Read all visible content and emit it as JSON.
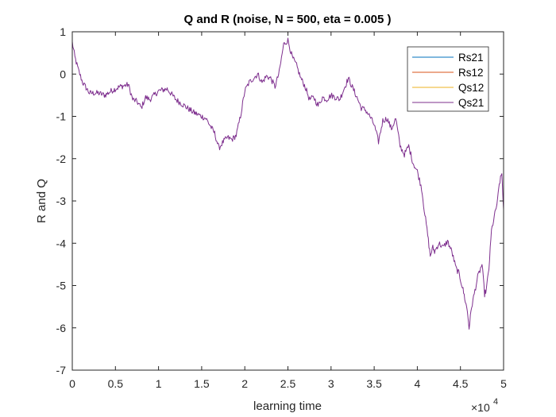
{
  "chart_data": {
    "type": "line",
    "title": "Q and R (noise, N = 500, eta = 0.005 )",
    "xlabel": "learning time",
    "ylabel": "R and Q",
    "x_exponent_label": "×10",
    "x_exponent_power": "4",
    "xlim": [
      0,
      50000
    ],
    "ylim": [
      -7,
      1
    ],
    "xticks": [
      0,
      5000,
      10000,
      15000,
      20000,
      25000,
      30000,
      35000,
      40000,
      45000,
      50000
    ],
    "xtick_labels": [
      "0",
      "0.5",
      "1",
      "1.5",
      "2",
      "2.5",
      "3",
      "3.5",
      "4",
      "4.5",
      "5"
    ],
    "yticks": [
      1,
      0,
      -1,
      -2,
      -3,
      -4,
      -5,
      -6,
      -7
    ],
    "ytick_labels": [
      "1",
      "0",
      "-1",
      "-2",
      "-3",
      "-4",
      "-5",
      "-6",
      "-7"
    ],
    "grid": false,
    "legend_position": "top-right",
    "series": [
      {
        "name": "Rs21",
        "color": "#0072BD",
        "visible": false,
        "values": []
      },
      {
        "name": "Rs12",
        "color": "#D95319",
        "visible": false,
        "values": []
      },
      {
        "name": "Qs12",
        "color": "#EDB120",
        "visible": false,
        "values": []
      },
      {
        "name": "Qs21",
        "color": "#7E2F8E",
        "visible": true,
        "x": [
          0,
          300,
          700,
          1200,
          2000,
          3000,
          3800,
          4500,
          5500,
          6500,
          7000,
          7500,
          8000,
          8500,
          9000,
          10000,
          11000,
          12000,
          13000,
          14000,
          15000,
          15500,
          16500,
          17000,
          17500,
          18000,
          18500,
          19000,
          19500,
          20000,
          20500,
          21000,
          21500,
          22000,
          22500,
          23000,
          23500,
          24000,
          24500,
          25000,
          25500,
          26000,
          26500,
          27000,
          27500,
          28000,
          28500,
          29000,
          29500,
          30000,
          31000,
          32000,
          33000,
          33500,
          34000,
          34500,
          35000,
          35500,
          36000,
          36500,
          37000,
          37500,
          38000,
          38500,
          39000,
          39500,
          40000,
          40500,
          40800,
          41200,
          41500,
          41800,
          42000,
          42500,
          43000,
          43500,
          44000,
          44500,
          44800,
          45000,
          45300,
          45500,
          45800,
          46000,
          46300,
          46600,
          47000,
          47500,
          47800,
          48000,
          48300,
          48600,
          49000,
          49300,
          49500,
          49800,
          50000
        ],
        "values": [
          0.75,
          0.4,
          0.1,
          -0.2,
          -0.45,
          -0.45,
          -0.5,
          -0.4,
          -0.3,
          -0.25,
          -0.6,
          -0.65,
          -0.8,
          -0.55,
          -0.6,
          -0.4,
          -0.35,
          -0.6,
          -0.75,
          -0.9,
          -1.0,
          -1.05,
          -1.4,
          -1.75,
          -1.6,
          -1.5,
          -1.55,
          -1.45,
          -1.0,
          -0.4,
          -0.2,
          -0.1,
          0.0,
          -0.2,
          -0.05,
          -0.1,
          -0.3,
          0.05,
          0.7,
          0.8,
          0.4,
          0.2,
          -0.1,
          -0.3,
          -0.6,
          -0.55,
          -0.75,
          -0.55,
          -0.6,
          -0.5,
          -0.6,
          -0.1,
          -0.55,
          -0.8,
          -0.85,
          -1.0,
          -1.2,
          -1.6,
          -1.1,
          -1.05,
          -1.3,
          -1.05,
          -1.7,
          -1.9,
          -1.7,
          -2.1,
          -2.3,
          -2.7,
          -3.2,
          -3.8,
          -4.3,
          -4.1,
          -4.2,
          -4.0,
          -4.1,
          -3.95,
          -4.2,
          -4.6,
          -4.7,
          -4.85,
          -5.1,
          -5.3,
          -5.6,
          -6.0,
          -5.5,
          -5.2,
          -4.8,
          -4.5,
          -5.2,
          -5.1,
          -4.6,
          -3.7,
          -3.3,
          -3.0,
          -2.6,
          -2.35,
          -3.2
        ]
      }
    ]
  }
}
